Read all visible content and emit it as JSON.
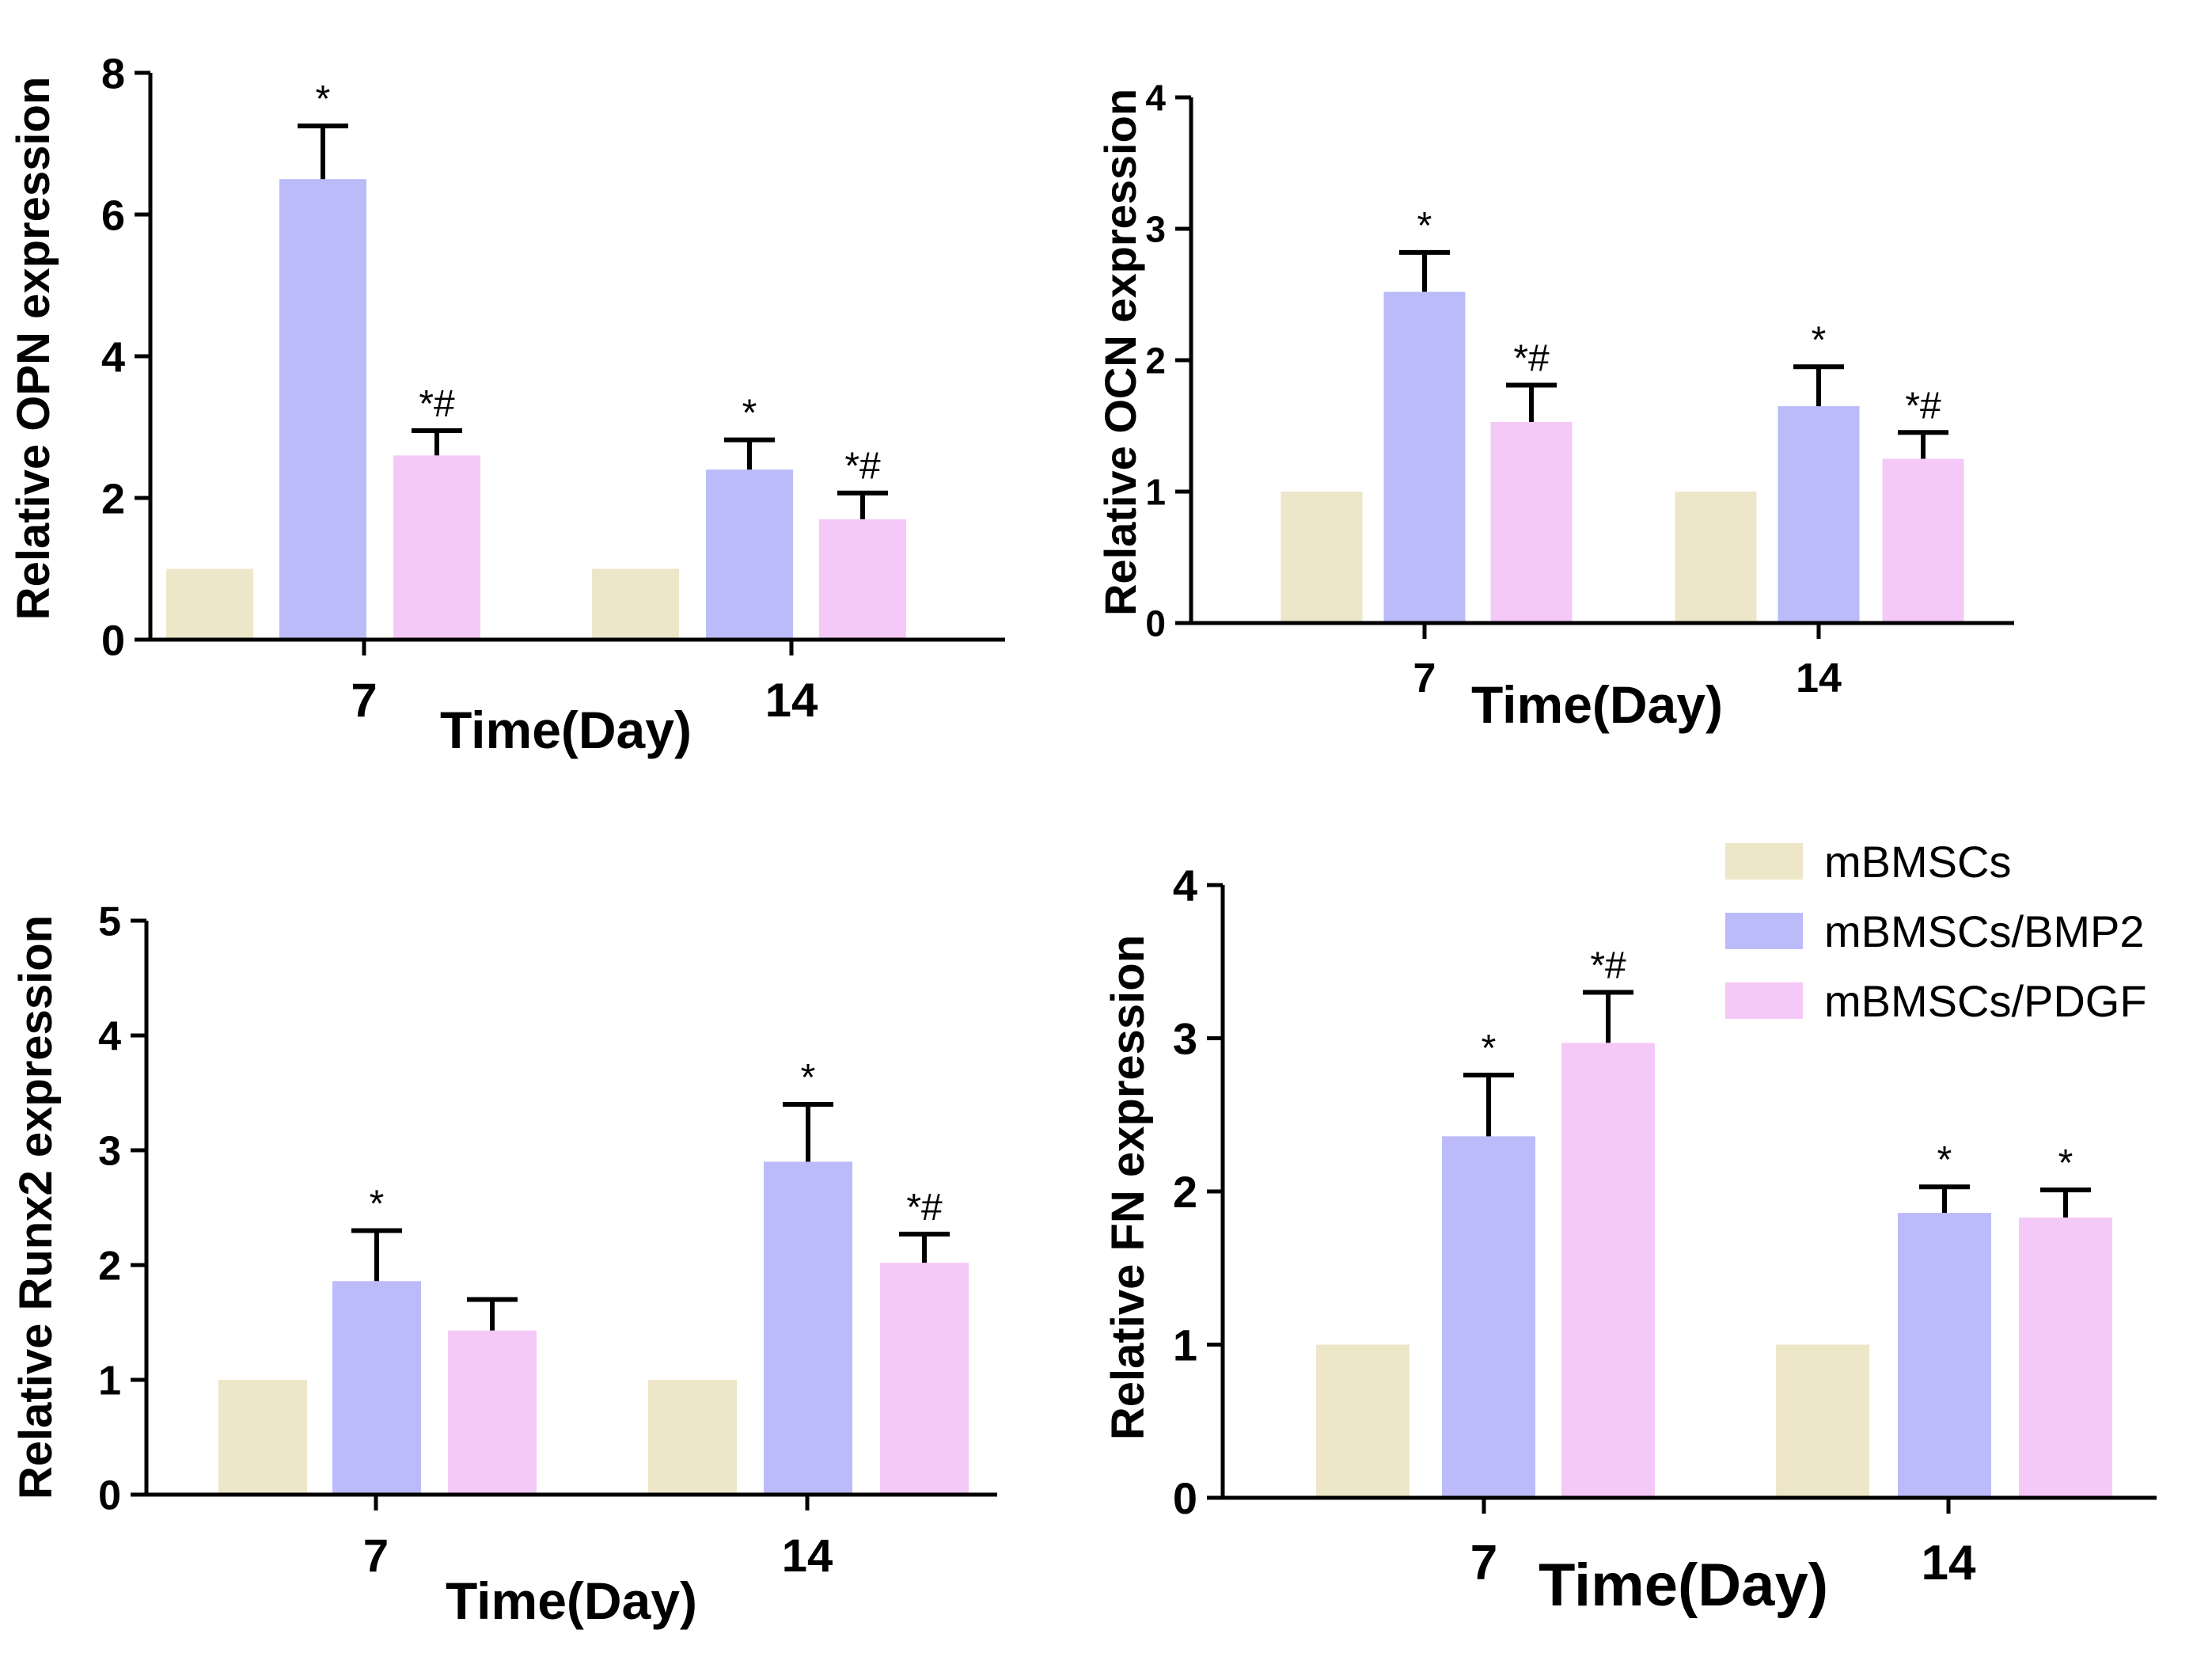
{
  "legend": {
    "series": [
      "mBMSCs",
      "mBMSCs/BMP2",
      "mBMSCs/PDGF"
    ],
    "colors": [
      "#ede6c8",
      "#bbbbfa",
      "#f5c9f7"
    ]
  },
  "chart_data": [
    {
      "type": "bar",
      "title": "",
      "xlabel": "Time(Day)",
      "ylabel": "Relative OPN expression",
      "categories": [
        "7",
        "14"
      ],
      "ylim": [
        0,
        8
      ],
      "yticks": [
        0,
        2,
        4,
        6,
        8
      ],
      "ytick_labels": [
        "0",
        "2",
        "4",
        "6",
        "8"
      ],
      "series": [
        {
          "name": "mBMSCs",
          "values": [
            1.0,
            1.0
          ],
          "errors": [
            0,
            0
          ],
          "sig": [
            "",
            ""
          ]
        },
        {
          "name": "mBMSCs/BMP2",
          "values": [
            6.5,
            2.4
          ],
          "errors": [
            0.75,
            0.42
          ],
          "sig": [
            "*",
            "*"
          ]
        },
        {
          "name": "mBMSCs/PDGF",
          "values": [
            2.6,
            1.7
          ],
          "errors": [
            0.35,
            0.37
          ],
          "sig": [
            "*#",
            "*#"
          ]
        }
      ]
    },
    {
      "type": "bar",
      "title": "",
      "xlabel": "Time(Day)",
      "ylabel": "Relative OCN expression",
      "categories": [
        "7",
        "14"
      ],
      "ylim": [
        0,
        4
      ],
      "yticks": [
        0,
        1,
        2,
        3,
        4
      ],
      "ytick_labels": [
        "0",
        "1",
        "2",
        "3",
        "4"
      ],
      "series": [
        {
          "name": "mBMSCs",
          "values": [
            1.0,
            1.0
          ],
          "errors": [
            0,
            0
          ],
          "sig": [
            "",
            ""
          ]
        },
        {
          "name": "mBMSCs/BMP2",
          "values": [
            2.52,
            1.65
          ],
          "errors": [
            0.3,
            0.3
          ],
          "sig": [
            "*",
            "*"
          ]
        },
        {
          "name": "mBMSCs/PDGF",
          "values": [
            1.53,
            1.25
          ],
          "errors": [
            0.28,
            0.2
          ],
          "sig": [
            "*#",
            "*#"
          ]
        }
      ]
    },
    {
      "type": "bar",
      "title": "",
      "xlabel": "Time(Day)",
      "ylabel": "Relative Runx2 expression",
      "categories": [
        "7",
        "14"
      ],
      "ylim": [
        0,
        5
      ],
      "yticks": [
        0,
        1,
        2,
        3,
        4,
        5
      ],
      "ytick_labels": [
        "0",
        "1",
        "2",
        "3",
        "4",
        "5"
      ],
      "series": [
        {
          "name": "mBMSCs",
          "values": [
            1.0,
            1.0
          ],
          "errors": [
            0,
            0
          ],
          "sig": [
            "",
            ""
          ]
        },
        {
          "name": "mBMSCs/BMP2",
          "values": [
            1.86,
            2.9
          ],
          "errors": [
            0.44,
            0.5
          ],
          "sig": [
            "*",
            "*"
          ]
        },
        {
          "name": "mBMSCs/PDGF",
          "values": [
            1.43,
            2.02
          ],
          "errors": [
            0.27,
            0.25
          ],
          "sig": [
            "",
            "*#"
          ]
        }
      ]
    },
    {
      "type": "bar",
      "title": "",
      "xlabel": "Time(Day)",
      "ylabel": "Relative FN expression",
      "categories": [
        "7",
        "14"
      ],
      "ylim": [
        0,
        4
      ],
      "yticks": [
        0,
        1,
        2,
        3,
        4
      ],
      "ytick_labels": [
        "0",
        "1",
        "2",
        "3",
        "4"
      ],
      "series": [
        {
          "name": "mBMSCs",
          "values": [
            1.0,
            1.0
          ],
          "errors": [
            0,
            0
          ],
          "sig": [
            "",
            ""
          ]
        },
        {
          "name": "mBMSCs/BMP2",
          "values": [
            2.36,
            1.86
          ],
          "errors": [
            0.4,
            0.17
          ],
          "sig": [
            "*",
            "*"
          ]
        },
        {
          "name": "mBMSCs/PDGF",
          "values": [
            2.97,
            1.83
          ],
          "errors": [
            0.33,
            0.18
          ],
          "sig": [
            "*#",
            "*"
          ]
        }
      ]
    }
  ]
}
